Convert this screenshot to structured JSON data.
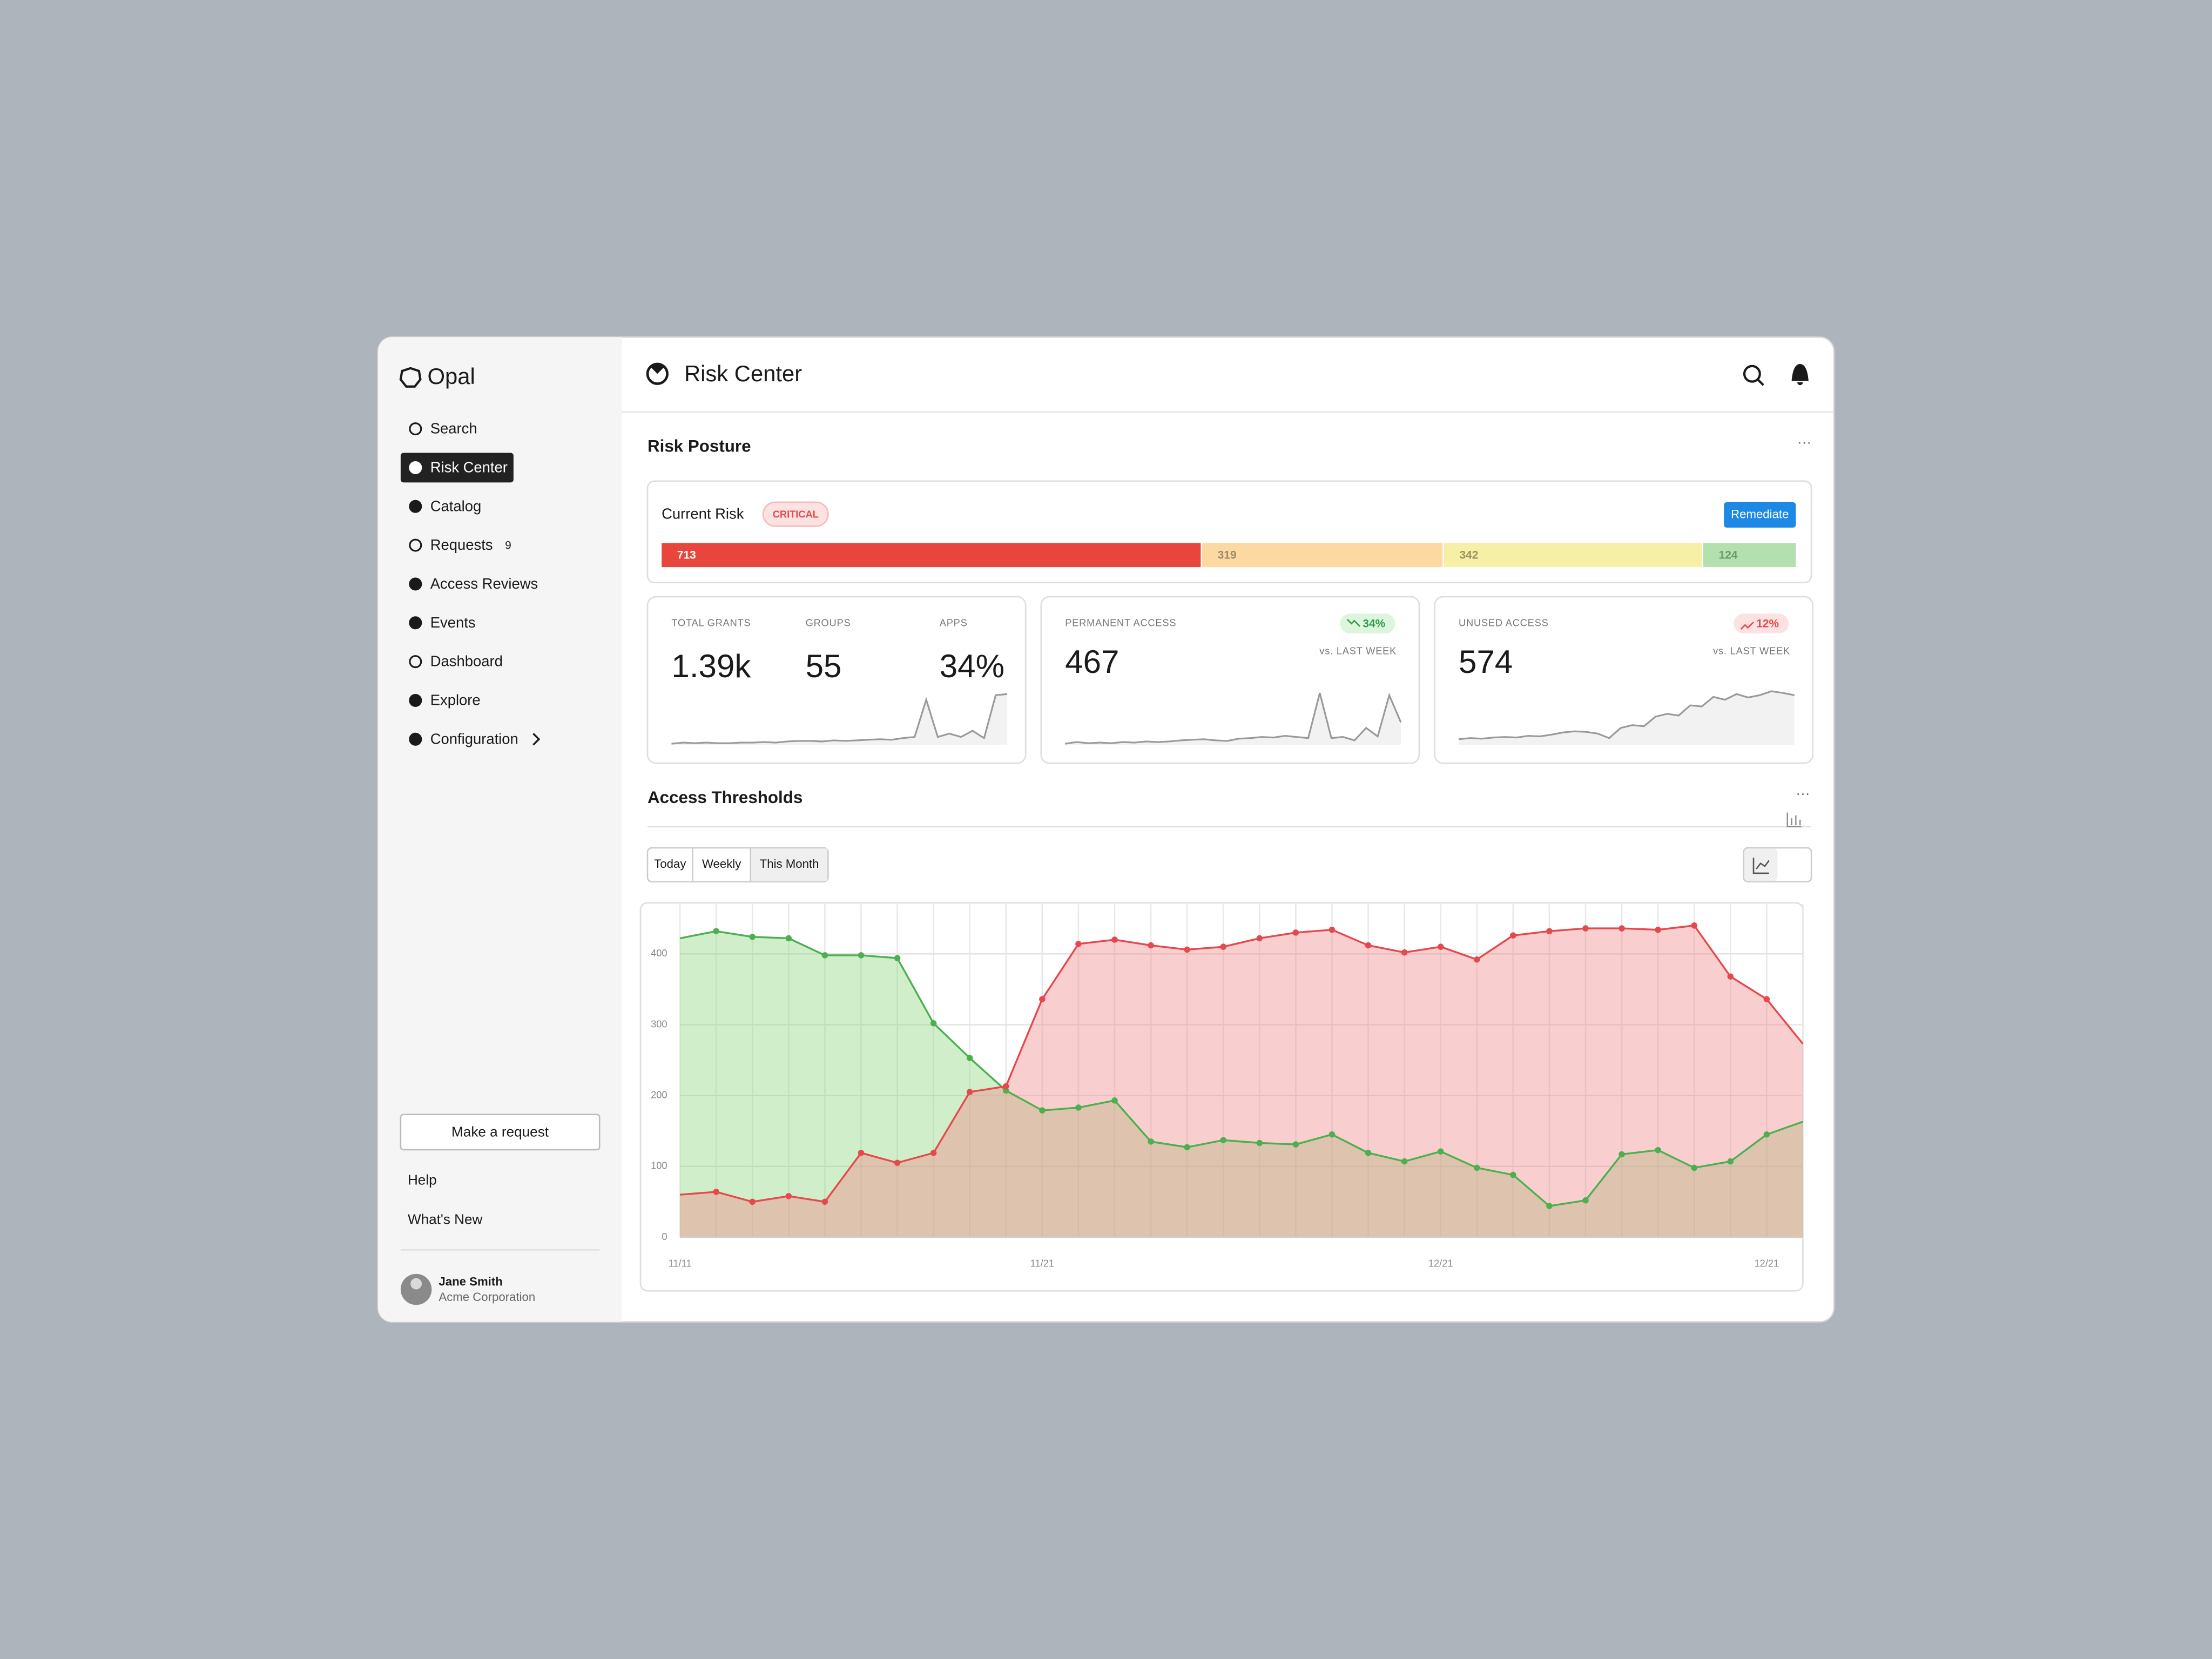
{
  "sidebar": {
    "logo": "Opal",
    "nav": [
      "Search",
      "Risk Center",
      "Catalog",
      "Requests",
      "Access Reviews",
      "Events",
      "Dashboard",
      "Explore",
      "Configuration"
    ],
    "active": 1,
    "requests_badge": 9,
    "make_request": "Make a request",
    "links": [
      "Help",
      "What's New"
    ],
    "user": {
      "name": "Jane Smith",
      "org": "Acme Corporation"
    }
  },
  "header": {
    "title": "Risk Center"
  },
  "risk_posture": {
    "title": "Risk Posture",
    "current_risk": {
      "label": "Current Risk",
      "level": "CRITICAL",
      "action": "Remediate",
      "segments": [
        {
          "value": 713,
          "color": "#e8453c",
          "text_color": "#ffffff"
        },
        {
          "value": 319,
          "color": "#fdd9a2",
          "text_color": "#9a8a6a"
        },
        {
          "value": 342,
          "color": "#f6efa6",
          "text_color": "#9a9460"
        },
        {
          "value": 124,
          "color": "#b4dfae",
          "text_color": "#6f9a6a"
        }
      ]
    },
    "cards": [
      {
        "metrics": [
          {
            "label": "TOTAL GRANTS",
            "value": "1.39k"
          },
          {
            "label": "GROUPS",
            "value": 55
          },
          {
            "label": "APPS",
            "value": "34%"
          }
        ],
        "sparkline": {
          "ylim": [
            0,
            100
          ],
          "values": [
            2,
            4,
            3,
            4,
            3,
            3,
            4,
            4,
            5,
            4,
            6,
            7,
            7,
            6,
            8,
            7,
            8,
            9,
            10,
            9,
            12,
            14,
            80,
            14,
            20,
            14,
            25,
            12,
            88,
            90
          ]
        }
      },
      {
        "metrics": [
          {
            "label": "PERMANENT ACCESS",
            "value": 467
          }
        ],
        "change": "34%",
        "trend": "down",
        "compare": "vs. LAST WEEK",
        "sparkline": {
          "ylim": [
            0,
            100
          ],
          "values": [
            2,
            5,
            3,
            4,
            3,
            5,
            4,
            6,
            5,
            6,
            8,
            9,
            10,
            8,
            7,
            11,
            12,
            14,
            13,
            16,
            14,
            12,
            92,
            12,
            14,
            8,
            30,
            15,
            88,
            40
          ]
        }
      },
      {
        "metrics": [
          {
            "label": "UNUSED ACCESS",
            "value": 574
          }
        ],
        "change": "12%",
        "trend": "up",
        "compare": "vs. LAST WEEK",
        "sparkline": {
          "ylim": [
            0,
            100
          ],
          "values": [
            10,
            12,
            11,
            13,
            14,
            13,
            16,
            15,
            18,
            22,
            24,
            23,
            20,
            12,
            30,
            35,
            33,
            50,
            55,
            52,
            70,
            68,
            85,
            80,
            90,
            84,
            88,
            95,
            92,
            88
          ]
        }
      }
    ]
  },
  "access_thresholds": {
    "title": "Access Thresholds",
    "tabs": [
      "Today",
      "Weekly",
      "This Month"
    ],
    "active_tab": 2,
    "chart_data": {
      "type": "area",
      "categories": [
        "11/11",
        null,
        null,
        null,
        null,
        null,
        null,
        null,
        null,
        null,
        "11/21",
        null,
        null,
        null,
        null,
        null,
        null,
        null,
        null,
        null,
        null,
        "12/21",
        null,
        null,
        null,
        null,
        null,
        null,
        null,
        null,
        "12/21",
        null
      ],
      "series": [
        {
          "color": "#4caf50",
          "fill": "#8fd67e",
          "values": [
            422,
            432,
            424,
            422,
            398,
            398,
            394,
            302,
            253,
            207,
            179,
            183,
            193,
            135,
            127,
            137,
            133,
            131,
            145,
            119,
            107,
            121,
            98,
            88,
            44,
            52,
            117,
            123,
            98,
            107,
            145,
            163
          ]
        },
        {
          "color": "#e5484d",
          "fill": "#f08a8a",
          "values": [
            60,
            64,
            50,
            58,
            50,
            119,
            105,
            119,
            205,
            213,
            336,
            414,
            420,
            412,
            406,
            410,
            422,
            430,
            434,
            412,
            402,
            410,
            392,
            426,
            432,
            436,
            436,
            434,
            440,
            368,
            336,
            273
          ]
        }
      ],
      "ylim": [
        0,
        470
      ],
      "yticks": [
        0,
        100,
        200,
        300,
        400
      ],
      "grid": true
    }
  }
}
